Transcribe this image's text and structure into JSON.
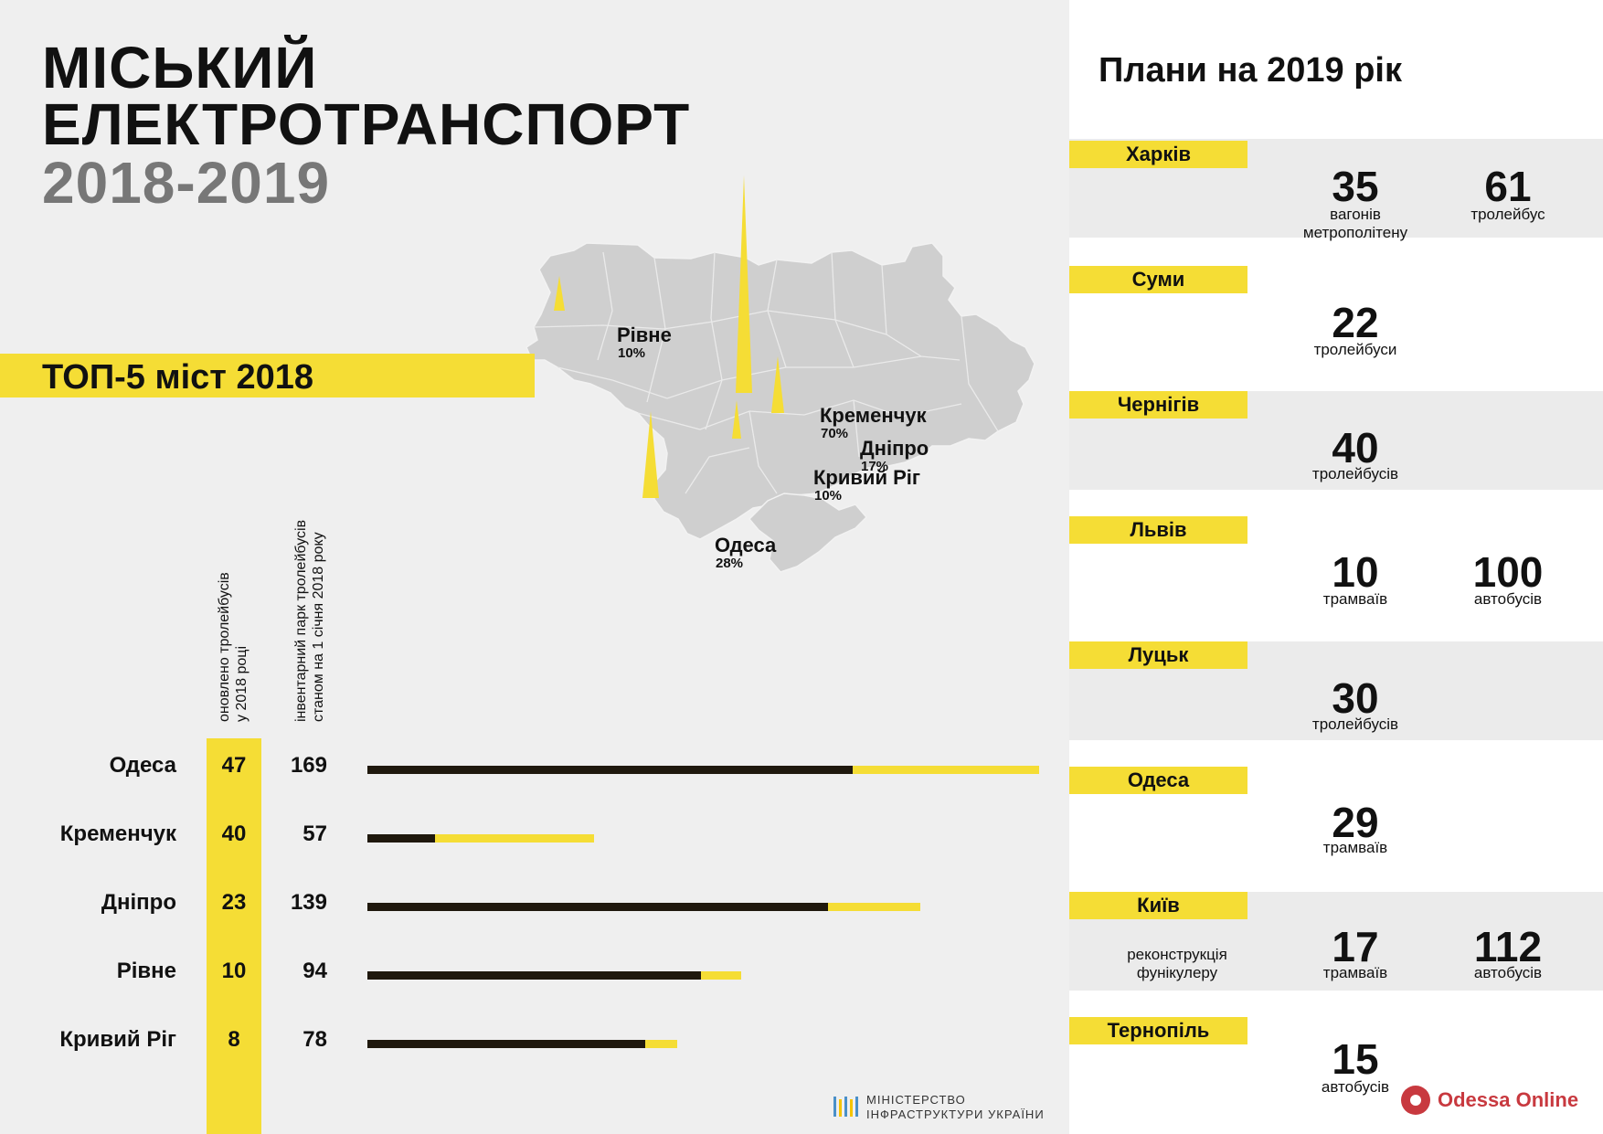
{
  "header": {
    "title_line1": "МІСЬКИЙ",
    "title_line2": "ЕЛЕКТРОТРАНСПОРТ",
    "title_line3": "2018-2019"
  },
  "top5": {
    "title": "ТОП-5 міст 2018",
    "col_renewed_line1": "оновлено тролейбусів",
    "col_renewed_line2": "у 2018 році",
    "col_inventory_line1": "інвентарний парк тролейбусів",
    "col_inventory_line2": "станом на 1 січня 2018 року",
    "rows": [
      {
        "city": "Одеса",
        "renewed": "47",
        "inventory": "169"
      },
      {
        "city": "Кременчук",
        "renewed": "40",
        "inventory": "57"
      },
      {
        "city": "Дніпро",
        "renewed": "23",
        "inventory": "139"
      },
      {
        "city": "Рівне",
        "renewed": "10",
        "inventory": "94"
      },
      {
        "city": "Кривий Ріг",
        "renewed": "8",
        "inventory": "78"
      }
    ]
  },
  "map": {
    "markers": [
      {
        "name": "Рівне",
        "pct": "10%"
      },
      {
        "name": "Кременчук",
        "pct": "70%"
      },
      {
        "name": "Дніпро",
        "pct": "17%"
      },
      {
        "name": "Кривий Ріг",
        "pct": "10%"
      },
      {
        "name": "Одеса",
        "pct": "28%"
      }
    ]
  },
  "ministry": {
    "line1": "МІНІСТЕРСТВО",
    "line2": "ІНФРАСТРУКТУРИ УКРАЇНИ"
  },
  "plans": {
    "title": "Плани на 2019 рік",
    "cities": [
      {
        "name": "Харків",
        "note": "",
        "items": [
          {
            "num": "35",
            "label_l1": "вагонів",
            "label_l2": "метрополітену"
          },
          {
            "num": "61",
            "label_l1": "тролейбус",
            "label_l2": ""
          }
        ]
      },
      {
        "name": "Суми",
        "note": "",
        "items": [
          {
            "num": "22",
            "label_l1": "тролейбуси",
            "label_l2": ""
          }
        ]
      },
      {
        "name": "Чернігів",
        "note": "",
        "items": [
          {
            "num": "40",
            "label_l1": "тролейбусів",
            "label_l2": ""
          }
        ]
      },
      {
        "name": "Львів",
        "note": "",
        "items": [
          {
            "num": "10",
            "label_l1": "трамваїв",
            "label_l2": ""
          },
          {
            "num": "100",
            "label_l1": "автобусів",
            "label_l2": ""
          }
        ]
      },
      {
        "name": "Луцьк",
        "note": "",
        "items": [
          {
            "num": "30",
            "label_l1": "тролейбусів",
            "label_l2": ""
          }
        ]
      },
      {
        "name": "Одеса",
        "note": "",
        "items": [
          {
            "num": "29",
            "label_l1": "трамваїв",
            "label_l2": ""
          }
        ]
      },
      {
        "name": "Київ",
        "note": "реконструкція фунікулеру",
        "note_l1": "реконструкція",
        "note_l2": "фунікулеру",
        "items": [
          {
            "num": "17",
            "label_l1": "трамваїв",
            "label_l2": ""
          },
          {
            "num": "112",
            "label_l1": "автобусів",
            "label_l2": ""
          }
        ]
      },
      {
        "name": "Тернопіль",
        "note": "",
        "items": [
          {
            "num": "15",
            "label_l1": "автобусів",
            "label_l2": ""
          }
        ]
      }
    ]
  },
  "brand": {
    "name": "Odessa Online",
    "color": "#c8393f"
  },
  "colors": {
    "yellow": "#f5dd35",
    "dark": "#1f180d",
    "background": "#efefef",
    "map_fill": "#cfcfcf"
  },
  "chart_data": {
    "type": "bar",
    "categories": [
      "Одеса",
      "Кременчук",
      "Дніпро",
      "Рівне",
      "Кривий Ріг"
    ],
    "series": [
      {
        "values": [
          169,
          57,
          139,
          94,
          78
        ]
      },
      {
        "values": [
          47,
          40,
          23,
          10,
          8
        ]
      }
    ]
  }
}
